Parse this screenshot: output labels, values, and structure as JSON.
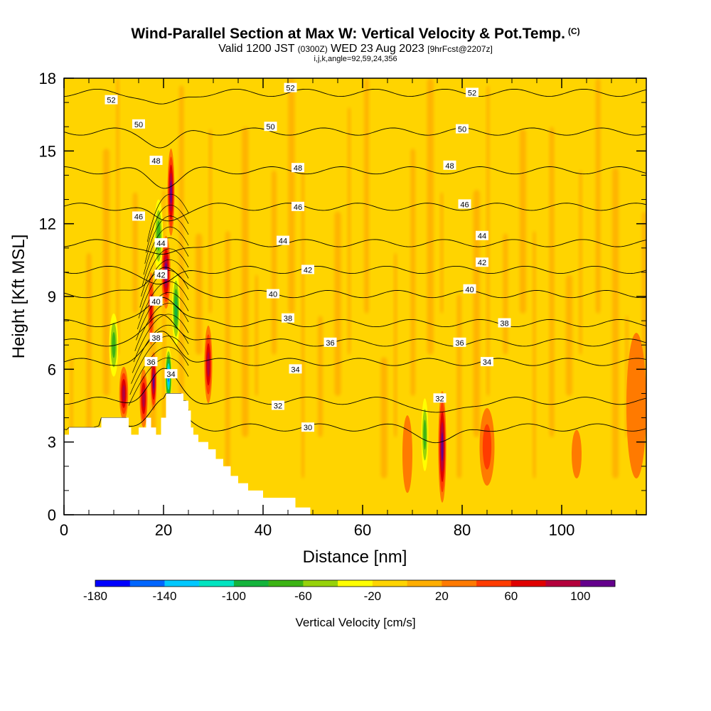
{
  "header": {
    "title": "Wind-Parallel Section at Max W: Vertical Velocity & Pot.Temp.",
    "copyright_mark": "(C)",
    "valid_text": "Valid 1200 JST",
    "utc_text": "(0300Z)",
    "date_text": "WED 23 Aug 2023",
    "forecast_text": "[9hrFcst@2207z]",
    "params": "i,j,k,angle=92,59,24,356"
  },
  "chart_data": {
    "type": "heatmap",
    "xlabel": "Distance [nm]",
    "ylabel": "Height [Kft MSL]",
    "xlim": [
      0,
      117
    ],
    "ylim": [
      0,
      18
    ],
    "x_ticks": [
      0,
      20,
      40,
      60,
      80,
      100
    ],
    "y_ticks": [
      0,
      3,
      6,
      9,
      12,
      15,
      18
    ],
    "colorbar": {
      "label": "Vertical Velocity [cm/s]",
      "min": -180,
      "max": 120,
      "step": 20,
      "tick_labels": [
        -180,
        -140,
        -100,
        -60,
        -20,
        20,
        60,
        100
      ],
      "colors": [
        "#0000ff",
        "#0066ff",
        "#00c8ff",
        "#00e4c0",
        "#14b43c",
        "#3cb414",
        "#96d20a",
        "#ffff00",
        "#ffd400",
        "#ffae00",
        "#ff7a00",
        "#ff3c00",
        "#e00000",
        "#b4003c",
        "#64008c"
      ]
    },
    "terrain_kft": [
      [
        0,
        3.3
      ],
      [
        1,
        3.6
      ],
      [
        4,
        3.6
      ],
      [
        7.5,
        4
      ],
      [
        12.5,
        4
      ],
      [
        13,
        3.6
      ],
      [
        13.5,
        3.3
      ],
      [
        15,
        3.6
      ],
      [
        16.5,
        4
      ],
      [
        17.5,
        3.6
      ],
      [
        18.5,
        3.3
      ],
      [
        19.5,
        4
      ],
      [
        20.5,
        5
      ],
      [
        24,
        4.7
      ],
      [
        25,
        4.3
      ],
      [
        25.5,
        3.6
      ],
      [
        26,
        3.3
      ],
      [
        27,
        3
      ],
      [
        29,
        2.7
      ],
      [
        30.5,
        2.3
      ],
      [
        32,
        2
      ],
      [
        33.5,
        1.6
      ],
      [
        35,
        1.3
      ],
      [
        37,
        1
      ],
      [
        39,
        1
      ],
      [
        40,
        0.7
      ],
      [
        46,
        0.7
      ],
      [
        46.5,
        0.3
      ],
      [
        49,
        0.3
      ],
      [
        49.5,
        0
      ]
    ],
    "w_features": [
      {
        "x": 10,
        "y": 7,
        "rx": 0.9,
        "ry": 1.3,
        "w": -60
      },
      {
        "x": 12,
        "y": 5,
        "rx": 0.9,
        "ry": 1.1,
        "w": 80
      },
      {
        "x": 16,
        "y": 4.8,
        "rx": 0.8,
        "ry": 1.2,
        "w": 80
      },
      {
        "x": 17.5,
        "y": 8.5,
        "rx": 0.6,
        "ry": 1.5,
        "w": 60
      },
      {
        "x": 18,
        "y": 5.5,
        "rx": 0.6,
        "ry": 1.2,
        "w": 100
      },
      {
        "x": 19,
        "y": 11.5,
        "rx": 0.9,
        "ry": 1.5,
        "w": -60
      },
      {
        "x": 20.5,
        "y": 10,
        "rx": 0.9,
        "ry": 1.5,
        "w": 100
      },
      {
        "x": 21.5,
        "y": 13.3,
        "rx": 0.7,
        "ry": 1.8,
        "w": 100
      },
      {
        "x": 21,
        "y": 5.7,
        "rx": 0.7,
        "ry": 1.2,
        "w": -140
      },
      {
        "x": 22.5,
        "y": 8.5,
        "rx": 0.8,
        "ry": 1.5,
        "w": -80
      },
      {
        "x": 29,
        "y": 6.2,
        "rx": 0.8,
        "ry": 1.6,
        "w": 80
      },
      {
        "x": 72.5,
        "y": 3.3,
        "rx": 0.7,
        "ry": 1.5,
        "w": -60
      },
      {
        "x": 76,
        "y": 2.8,
        "rx": 0.8,
        "ry": 2.3,
        "w": 100
      },
      {
        "x": 85,
        "y": 2.8,
        "rx": 1.5,
        "ry": 1.6,
        "w": 40
      },
      {
        "x": 69,
        "y": 2.5,
        "rx": 1,
        "ry": 1.6,
        "w": 20
      },
      {
        "x": 103,
        "y": 2.5,
        "rx": 1,
        "ry": 1,
        "w": 20
      },
      {
        "x": 115,
        "y": 4.5,
        "rx": 2,
        "ry": 3,
        "w": 20
      }
    ],
    "theta_contours": [
      {
        "label": "30",
        "y": 3.6
      },
      {
        "label": "32",
        "y": 4.7
      },
      {
        "label": "34",
        "y": 6.3
      },
      {
        "label": "36",
        "y": 7.1
      },
      {
        "label": "38",
        "y": 7.9
      },
      {
        "label": "40",
        "y": 9.1
      },
      {
        "label": "42",
        "y": 10.1
      },
      {
        "label": "44",
        "y": 11.2
      },
      {
        "label": "46",
        "y": 12.7
      },
      {
        "label": "48",
        "y": 14.2
      },
      {
        "label": "50",
        "y": 15.8
      },
      {
        "label": "52",
        "y": 17.4
      }
    ],
    "theta_labels": [
      {
        "text": "52",
        "x": 9.5,
        "y": 17.1
      },
      {
        "text": "50",
        "x": 15,
        "y": 16.1
      },
      {
        "text": "48",
        "x": 18.5,
        "y": 14.6
      },
      {
        "text": "46",
        "x": 15,
        "y": 12.3
      },
      {
        "text": "44",
        "x": 19.5,
        "y": 11.2
      },
      {
        "text": "42",
        "x": 19.5,
        "y": 9.9
      },
      {
        "text": "40",
        "x": 18.5,
        "y": 8.8
      },
      {
        "text": "38",
        "x": 18.5,
        "y": 7.3
      },
      {
        "text": "36",
        "x": 17.5,
        "y": 6.3
      },
      {
        "text": "34",
        "x": 21.5,
        "y": 5.8
      },
      {
        "text": "52",
        "x": 45.5,
        "y": 17.6
      },
      {
        "text": "50",
        "x": 41.5,
        "y": 16
      },
      {
        "text": "48",
        "x": 47,
        "y": 14.3
      },
      {
        "text": "46",
        "x": 47,
        "y": 12.7
      },
      {
        "text": "44",
        "x": 44,
        "y": 11.3
      },
      {
        "text": "42",
        "x": 49,
        "y": 10.1
      },
      {
        "text": "40",
        "x": 42,
        "y": 9.1
      },
      {
        "text": "38",
        "x": 45,
        "y": 8.1
      },
      {
        "text": "36",
        "x": 53.5,
        "y": 7.1
      },
      {
        "text": "34",
        "x": 46.5,
        "y": 6
      },
      {
        "text": "32",
        "x": 43,
        "y": 4.5
      },
      {
        "text": "30",
        "x": 49,
        "y": 3.6
      },
      {
        "text": "52",
        "x": 82,
        "y": 17.4
      },
      {
        "text": "50",
        "x": 80,
        "y": 15.9
      },
      {
        "text": "48",
        "x": 77.5,
        "y": 14.4
      },
      {
        "text": "46",
        "x": 80.5,
        "y": 12.8
      },
      {
        "text": "44",
        "x": 84,
        "y": 11.5
      },
      {
        "text": "42",
        "x": 84,
        "y": 10.4
      },
      {
        "text": "40",
        "x": 81.5,
        "y": 9.3
      },
      {
        "text": "38",
        "x": 88.5,
        "y": 7.9
      },
      {
        "text": "36",
        "x": 79.5,
        "y": 7.1
      },
      {
        "text": "34",
        "x": 85,
        "y": 6.3
      },
      {
        "text": "32",
        "x": 75.5,
        "y": 4.8
      }
    ]
  }
}
